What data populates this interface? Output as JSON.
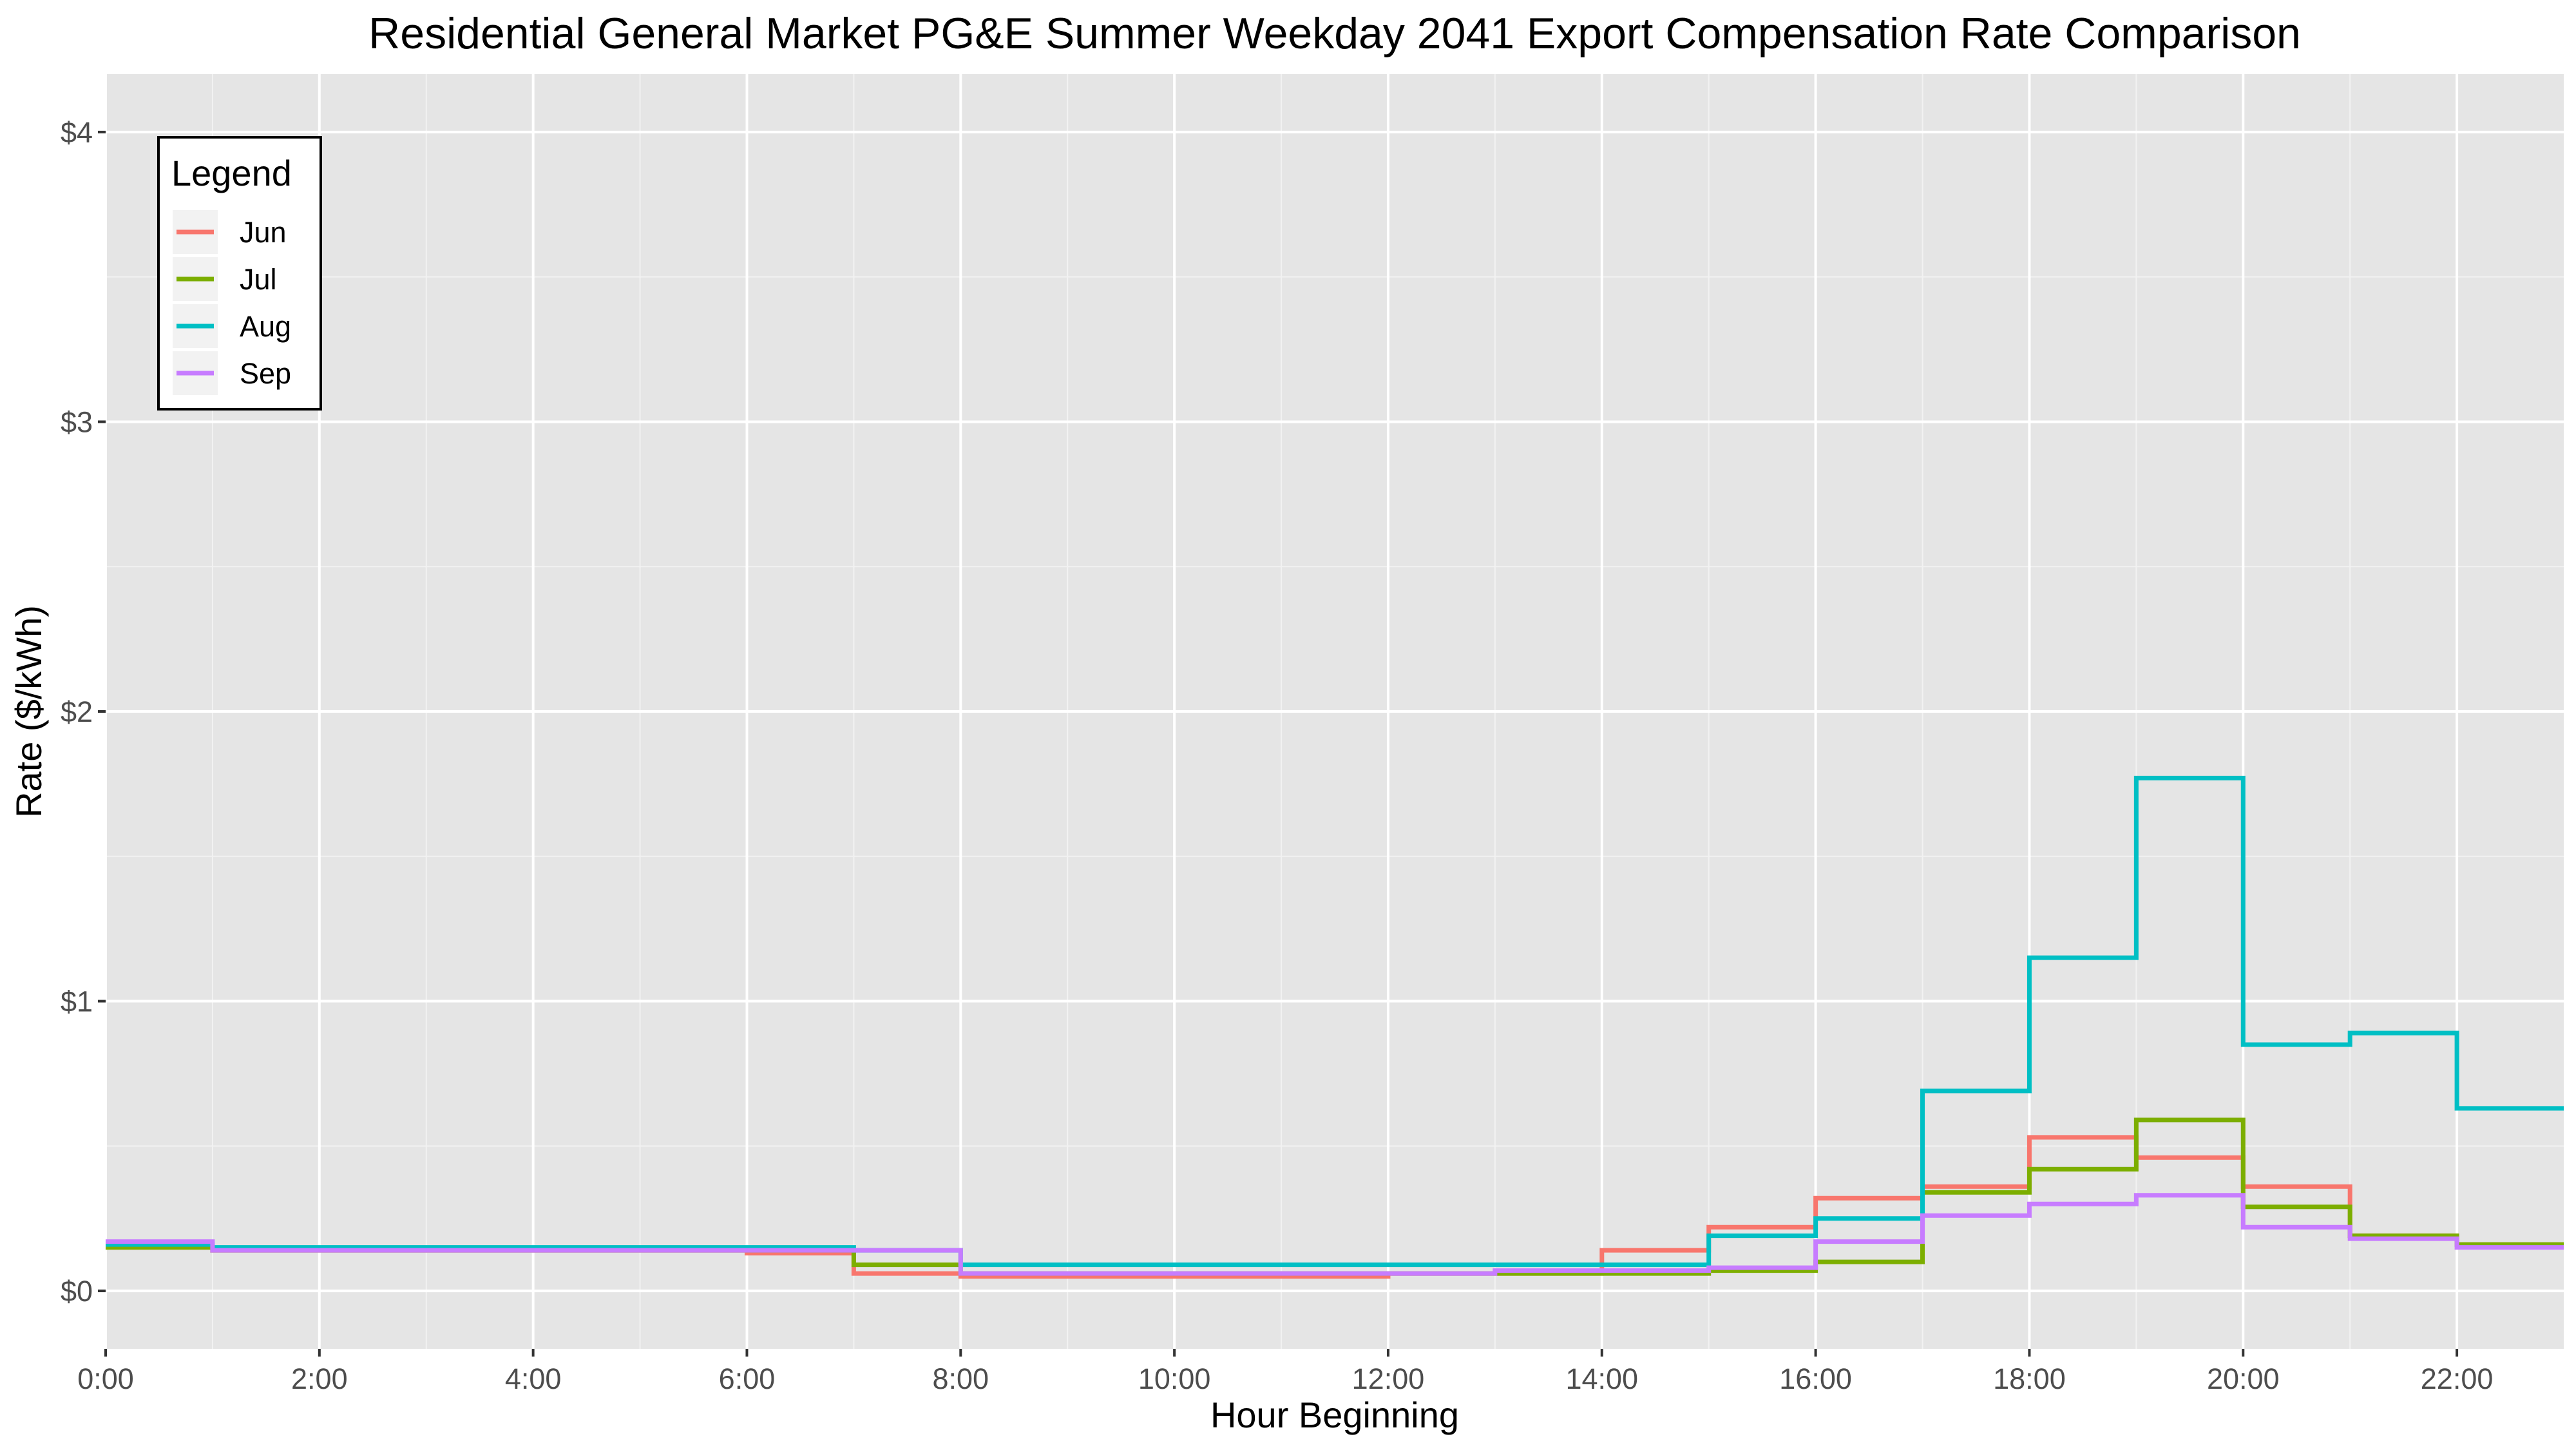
{
  "chart_data": {
    "type": "line",
    "step": true,
    "title": "Residential General Market PG&E Summer Weekday 2041 Export Compensation Rate Comparison",
    "xlabel": "Hour Beginning",
    "ylabel": "Rate ($/kWh)",
    "xlim": [
      0,
      23
    ],
    "ylim": [
      -0.2,
      4.2
    ],
    "x_ticks": [
      0,
      2,
      4,
      6,
      8,
      10,
      12,
      14,
      16,
      18,
      20,
      22
    ],
    "x_tick_labels": [
      "0:00",
      "2:00",
      "4:00",
      "6:00",
      "8:00",
      "10:00",
      "12:00",
      "14:00",
      "16:00",
      "18:00",
      "20:00",
      "22:00"
    ],
    "y_ticks": [
      0,
      1,
      2,
      3,
      4
    ],
    "y_tick_labels": [
      "$0",
      "$1",
      "$2",
      "$3",
      "$4"
    ],
    "grid": true,
    "legend": {
      "title": "Legend",
      "position": "top-left"
    },
    "x": [
      0,
      1,
      2,
      3,
      4,
      5,
      6,
      7,
      8,
      9,
      10,
      11,
      12,
      13,
      14,
      15,
      16,
      17,
      18,
      19,
      20,
      21,
      22,
      23
    ],
    "series": [
      {
        "name": "Jun",
        "color": "#F8766D",
        "values": [
          0.15,
          0.14,
          0.14,
          0.14,
          0.14,
          0.14,
          0.13,
          0.06,
          0.05,
          0.05,
          0.05,
          0.05,
          0.06,
          0.06,
          0.14,
          0.22,
          0.32,
          0.36,
          0.53,
          0.46,
          0.36,
          0.19,
          0.16,
          0.16
        ]
      },
      {
        "name": "Jul",
        "color": "#7CAE00",
        "values": [
          0.15,
          0.14,
          0.14,
          0.14,
          0.14,
          0.14,
          0.14,
          0.09,
          0.06,
          0.06,
          0.06,
          0.06,
          0.06,
          0.06,
          0.06,
          0.07,
          0.1,
          0.34,
          0.42,
          0.59,
          0.29,
          0.19,
          0.16,
          0.16
        ]
      },
      {
        "name": "Aug",
        "color": "#00BFC4",
        "values": [
          0.16,
          0.15,
          0.15,
          0.15,
          0.15,
          0.15,
          0.15,
          0.14,
          0.09,
          0.09,
          0.09,
          0.09,
          0.09,
          0.09,
          0.09,
          0.19,
          0.25,
          0.69,
          1.15,
          1.77,
          0.85,
          0.89,
          0.63,
          0.63
        ]
      },
      {
        "name": "Sep",
        "color": "#C77CFF",
        "values": [
          0.17,
          0.14,
          0.14,
          0.14,
          0.14,
          0.14,
          0.14,
          0.14,
          0.06,
          0.06,
          0.06,
          0.06,
          0.06,
          0.07,
          0.07,
          0.08,
          0.17,
          0.26,
          0.3,
          0.33,
          0.22,
          0.18,
          0.15,
          0.15
        ]
      }
    ]
  }
}
